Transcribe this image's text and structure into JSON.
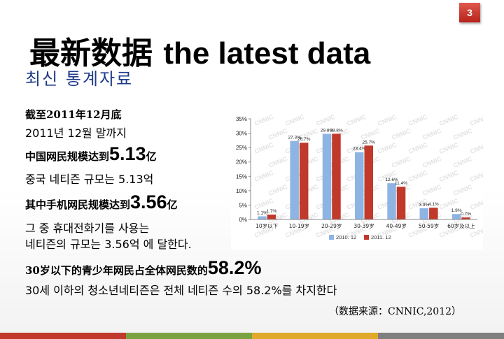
{
  "slide_number": "3",
  "title": {
    "zh": "最新数据",
    "en": "the latest data",
    "ko": "최신 통계자료"
  },
  "lines": [
    {
      "id": "date_zh",
      "text": "截至2011年12月底"
    },
    {
      "id": "date_ko",
      "text": "2011년 12월 말까지"
    },
    {
      "id": "users_zh_prefix",
      "text": "中国网民规模达到",
      "big": "5.13",
      "suffix": "亿"
    },
    {
      "id": "users_ko",
      "text": "중국 네티즌 규모는 5.13억"
    },
    {
      "id": "mobile_zh_prefix",
      "text": "其中手机网民规模达到",
      "big": "3.56",
      "suffix": "亿"
    },
    {
      "id": "mobile_ko_1",
      "text": "그 중 휴대전화기를 사용는"
    },
    {
      "id": "mobile_ko_2",
      "text": "네티즌의 규모는 3.56억 에 달한다."
    },
    {
      "id": "youth_zh_prefix",
      "text": "30岁以下的青少年网民占全体网民数的",
      "big": "58.2%"
    },
    {
      "id": "youth_ko",
      "text": "30세 이하의 청소년네티즌은 전체 네티즌 수의 58.2%를 차지한다"
    }
  ],
  "source": "（数据来源：CNNIC,2012）",
  "chart_data": {
    "type": "bar",
    "categories": [
      "10岁以下",
      "10-19岁",
      "20-29岁",
      "30-39岁",
      "40-49岁",
      "50-59岁",
      "60岁及以上"
    ],
    "series": [
      {
        "name": "2010. 12",
        "values": [
          1.1,
          27.3,
          29.8,
          23.4,
          12.6,
          3.9,
          1.9
        ],
        "labels": [
          "1.1%",
          "27.3%",
          "29.8%",
          "23.4%",
          "12.6%",
          "3.9%",
          "1.9%"
        ],
        "color": "#8eb4e3"
      },
      {
        "name": "2011. 12",
        "values": [
          1.7,
          26.7,
          29.8,
          25.7,
          11.4,
          4.1,
          0.7
        ],
        "labels": [
          "1.7%",
          "26.7%",
          "29.8%",
          "25.7%",
          "11.4%",
          "4.1%",
          "0.7%"
        ],
        "color": "#c0392b"
      }
    ],
    "yticks": [
      "0%",
      "5%",
      "10%",
      "15%",
      "20%",
      "25%",
      "30%",
      "35%"
    ],
    "ylim": [
      0,
      35
    ],
    "grid": false,
    "legend": "bottom",
    "watermark": "CNNIC"
  },
  "colors": {
    "slide_number_bg": "#c0392b",
    "subtitle": "#1e3a8a",
    "bar_2010": "#8eb4e3",
    "bar_2011": "#c0392b"
  }
}
